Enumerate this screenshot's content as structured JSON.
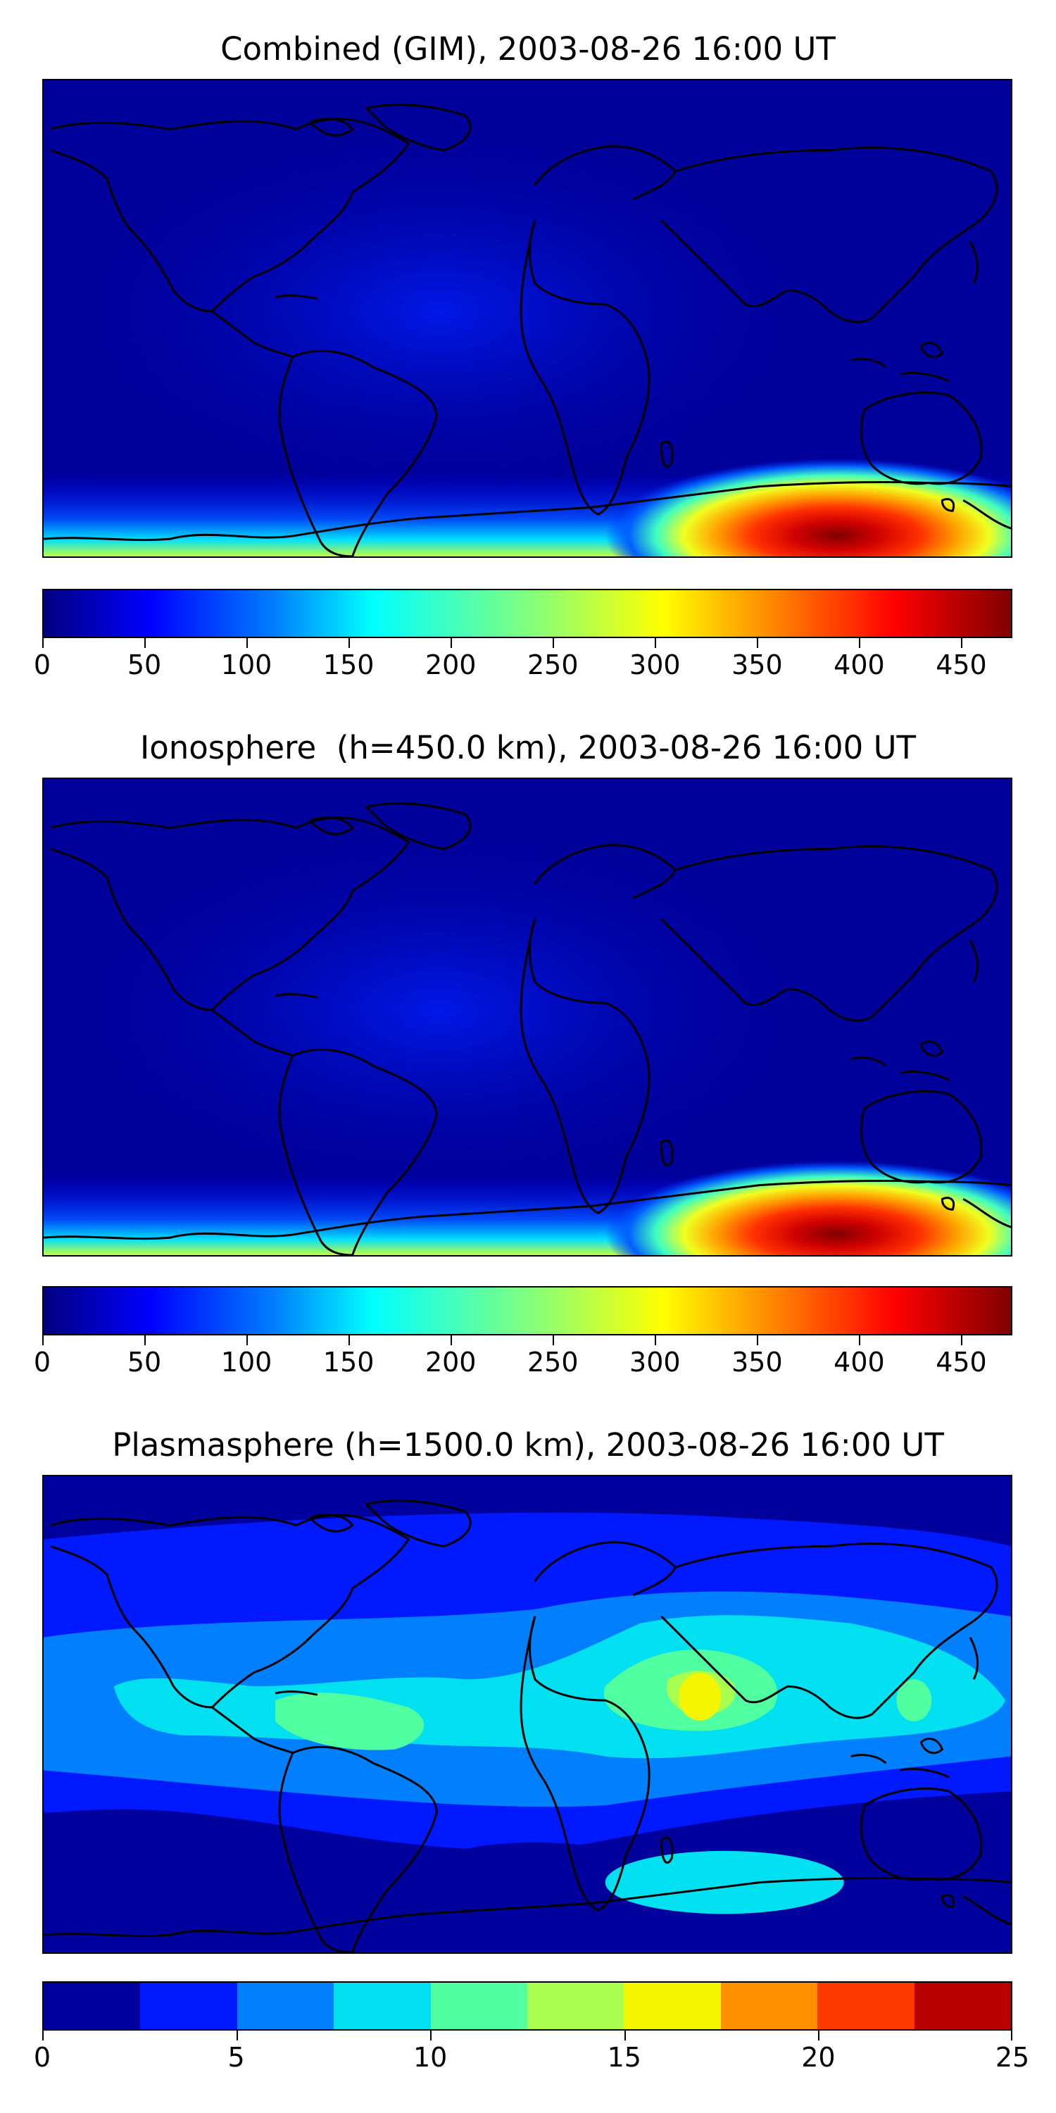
{
  "panels": [
    {
      "title": "Combined (GIM), 2003-08-26 16:00 UT",
      "colorbar_ticks": [
        "0",
        "50",
        "100",
        "150",
        "200",
        "250",
        "300",
        "350",
        "400",
        "450"
      ],
      "colorbar_max": 475
    },
    {
      "title": "Ionosphere  (h=450.0 km), 2003-08-26 16:00 UT",
      "colorbar_ticks": [
        "0",
        "50",
        "100",
        "150",
        "200",
        "250",
        "300",
        "350",
        "400",
        "450"
      ],
      "colorbar_max": 475
    },
    {
      "title": "Plasmasphere (h=1500.0 km), 2003-08-26 16:00 UT",
      "colorbar_ticks": [
        "0",
        "5",
        "10",
        "15",
        "20",
        "25"
      ],
      "colorbar_max": 25
    }
  ],
  "colors": {
    "background_low": "#00009a",
    "peak_red": "#e01010",
    "discrete_levels": [
      "#00009c",
      "#0019ff",
      "#0080ff",
      "#00e0f0",
      "#50ffa0",
      "#a8ff50",
      "#f5f500",
      "#ff9000",
      "#ff3800",
      "#b80000"
    ]
  }
}
